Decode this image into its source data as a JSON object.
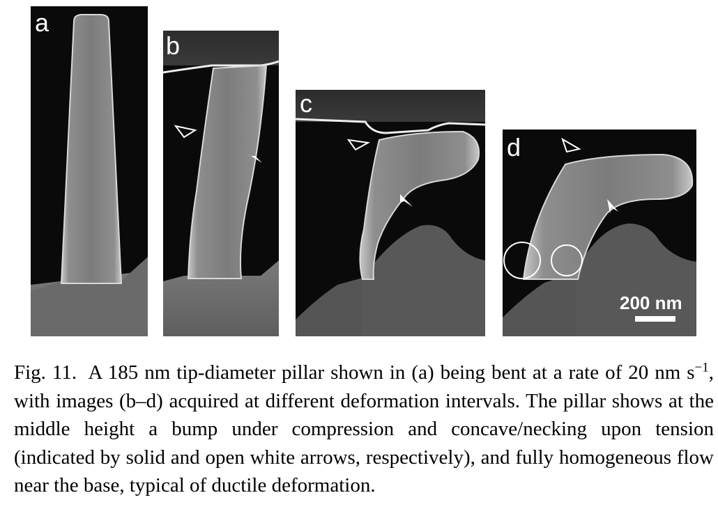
{
  "figure": {
    "panels": [
      {
        "id": "a",
        "label": "a"
      },
      {
        "id": "b",
        "label": "b"
      },
      {
        "id": "c",
        "label": "c"
      },
      {
        "id": "d",
        "label": "d"
      }
    ],
    "scale_bar": {
      "label": "200 nm"
    },
    "caption": {
      "fig_ref": "Fig. 11.",
      "text_1": "A 185 nm tip-diameter pillar shown in (a) being bent at a rate of 20 nm s",
      "superscript": "−1",
      "text_2": ", with images (b–d) acquired at different deformation intervals. The pillar shows at the middle height a bump under compression and concave/necking upon tension (indicated by solid and open white arrows, respectively), and fully homogeneous flow near the base, typical of ductile deformation."
    }
  }
}
